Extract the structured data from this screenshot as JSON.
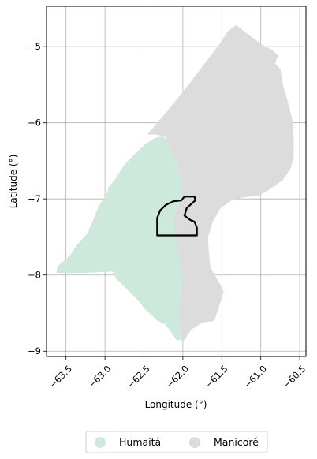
{
  "chart_data": {
    "type": "map",
    "xlabel": "Longitude (°)",
    "ylabel": "Latitude (°)",
    "xlim": [
      -63.75,
      -60.42
    ],
    "ylim": [
      -9.07,
      -4.47
    ],
    "grid": true,
    "x_ticks": [
      {
        "value": -63.5,
        "label": "−63.5"
      },
      {
        "value": -63.0,
        "label": "−63.0"
      },
      {
        "value": -62.5,
        "label": "−62.5"
      },
      {
        "value": -62.0,
        "label": "−62.0"
      },
      {
        "value": -61.5,
        "label": "−61.5"
      },
      {
        "value": -61.0,
        "label": "−61.0"
      },
      {
        "value": -60.5,
        "label": "−60.5"
      }
    ],
    "y_ticks": [
      {
        "value": -5,
        "label": "−5"
      },
      {
        "value": -6,
        "label": "−6"
      },
      {
        "value": -7,
        "label": "−7"
      },
      {
        "value": -8,
        "label": "−8"
      },
      {
        "value": -9,
        "label": "−9"
      }
    ],
    "legend_placement": "bottom-center",
    "legend": [
      {
        "label": "Humaitá",
        "color": "#cde9dc"
      },
      {
        "label": "Manicoré",
        "color": "#dcdcdc"
      }
    ],
    "regions": [
      {
        "name": "Manicoré",
        "color": "#dcdcdc",
        "outline": [
          [
            -62.45,
            -6.15
          ],
          [
            -62.2,
            -5.85
          ],
          [
            -62.0,
            -5.6
          ],
          [
            -61.85,
            -5.4
          ],
          [
            -61.7,
            -5.2
          ],
          [
            -61.55,
            -5.0
          ],
          [
            -61.42,
            -4.8
          ],
          [
            -61.32,
            -4.72
          ],
          [
            -61.15,
            -4.85
          ],
          [
            -60.98,
            -4.98
          ],
          [
            -60.85,
            -5.05
          ],
          [
            -60.78,
            -5.12
          ],
          [
            -60.82,
            -5.22
          ],
          [
            -60.75,
            -5.3
          ],
          [
            -60.72,
            -5.5
          ],
          [
            -60.65,
            -5.75
          ],
          [
            -60.6,
            -5.95
          ],
          [
            -60.58,
            -6.2
          ],
          [
            -60.58,
            -6.45
          ],
          [
            -60.62,
            -6.6
          ],
          [
            -60.72,
            -6.75
          ],
          [
            -60.9,
            -6.88
          ],
          [
            -61.02,
            -6.95
          ],
          [
            -61.25,
            -6.98
          ],
          [
            -61.38,
            -7.02
          ],
          [
            -61.52,
            -7.12
          ],
          [
            -61.62,
            -7.3
          ],
          [
            -61.68,
            -7.5
          ],
          [
            -61.67,
            -7.7
          ],
          [
            -61.65,
            -7.9
          ],
          [
            -61.55,
            -8.08
          ],
          [
            -61.48,
            -8.22
          ],
          [
            -61.55,
            -8.45
          ],
          [
            -61.6,
            -8.6
          ],
          [
            -61.75,
            -8.62
          ],
          [
            -61.9,
            -8.72
          ],
          [
            -62.0,
            -8.88
          ],
          [
            -62.02,
            -8.85
          ],
          [
            -62.05,
            -8.6
          ],
          [
            -62.05,
            -8.4
          ],
          [
            -62.02,
            -8.2
          ],
          [
            -62.0,
            -8.0
          ],
          [
            -62.05,
            -7.75
          ],
          [
            -62.1,
            -7.55
          ],
          [
            -62.12,
            -7.35
          ],
          [
            -62.1,
            -7.2
          ],
          [
            -62.05,
            -7.05
          ],
          [
            -62.0,
            -6.95
          ],
          [
            -62.02,
            -6.82
          ],
          [
            -62.05,
            -6.62
          ],
          [
            -62.1,
            -6.48
          ],
          [
            -62.18,
            -6.32
          ],
          [
            -62.22,
            -6.18
          ],
          [
            -62.35,
            -6.15
          ]
        ]
      },
      {
        "name": "Humaitá",
        "color": "#cde9dc",
        "outline": [
          [
            -63.6,
            -7.88
          ],
          [
            -63.45,
            -7.75
          ],
          [
            -63.35,
            -7.6
          ],
          [
            -63.22,
            -7.45
          ],
          [
            -63.15,
            -7.28
          ],
          [
            -63.08,
            -7.1
          ],
          [
            -62.97,
            -6.92
          ],
          [
            -62.95,
            -6.85
          ],
          [
            -62.85,
            -6.72
          ],
          [
            -62.75,
            -6.55
          ],
          [
            -62.62,
            -6.42
          ],
          [
            -62.48,
            -6.28
          ],
          [
            -62.35,
            -6.2
          ],
          [
            -62.25,
            -6.18
          ],
          [
            -62.18,
            -6.28
          ],
          [
            -62.12,
            -6.45
          ],
          [
            -62.06,
            -6.62
          ],
          [
            -62.02,
            -6.82
          ],
          [
            -62.0,
            -6.95
          ],
          [
            -62.05,
            -7.05
          ],
          [
            -62.1,
            -7.2
          ],
          [
            -62.12,
            -7.35
          ],
          [
            -62.1,
            -7.55
          ],
          [
            -62.05,
            -7.75
          ],
          [
            -62.0,
            -8.0
          ],
          [
            -62.02,
            -8.2
          ],
          [
            -62.05,
            -8.4
          ],
          [
            -62.05,
            -8.6
          ],
          [
            -62.02,
            -8.85
          ],
          [
            -62.08,
            -8.85
          ],
          [
            -62.15,
            -8.75
          ],
          [
            -62.22,
            -8.65
          ],
          [
            -62.32,
            -8.6
          ],
          [
            -62.48,
            -8.45
          ],
          [
            -62.6,
            -8.3
          ],
          [
            -62.75,
            -8.15
          ],
          [
            -62.85,
            -8.05
          ],
          [
            -62.9,
            -7.95
          ],
          [
            -63.25,
            -7.97
          ],
          [
            -63.62,
            -7.97
          ]
        ]
      }
    ],
    "highlight_outline": {
      "color": "#000000",
      "points": [
        [
          -62.33,
          -7.48
        ],
        [
          -62.33,
          -7.25
        ],
        [
          -62.29,
          -7.15
        ],
        [
          -62.22,
          -7.08
        ],
        [
          -62.12,
          -7.03
        ],
        [
          -62.02,
          -7.02
        ],
        [
          -61.98,
          -6.97
        ],
        [
          -61.85,
          -6.97
        ],
        [
          -61.84,
          -7.02
        ],
        [
          -61.95,
          -7.12
        ],
        [
          -61.98,
          -7.22
        ],
        [
          -61.9,
          -7.28
        ],
        [
          -61.85,
          -7.3
        ],
        [
          -61.82,
          -7.38
        ],
        [
          -61.82,
          -7.48
        ]
      ]
    }
  }
}
